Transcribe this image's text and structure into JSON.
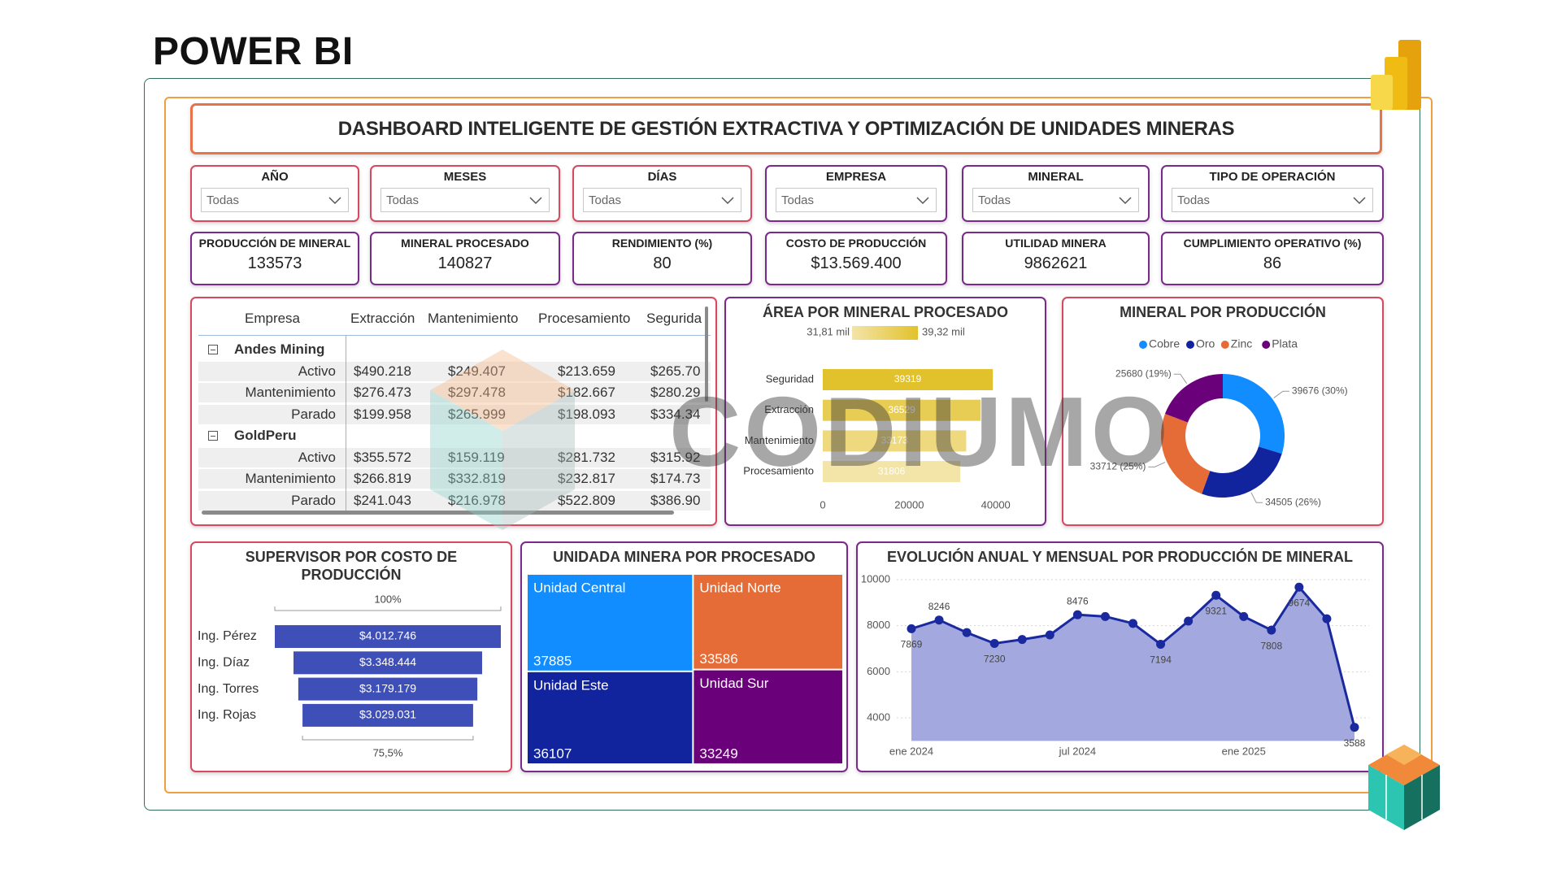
{
  "page_title": "POWER BI",
  "watermark": "CODIUMO",
  "header": {
    "title": "DASHBOARD INTELIGENTE DE GESTIÓN EXTRACTIVA Y OPTIMIZACIÓN DE UNIDADES MINERAS"
  },
  "filters": [
    {
      "label": "AÑO",
      "value": "Todas"
    },
    {
      "label": "MESES",
      "value": "Todas"
    },
    {
      "label": "DÍAS",
      "value": "Todas"
    },
    {
      "label": "EMPRESA",
      "value": "Todas"
    },
    {
      "label": "MINERAL",
      "value": "Todas"
    },
    {
      "label": "TIPO DE OPERACIÓN",
      "value": "Todas"
    }
  ],
  "kpis": [
    {
      "label": "PRODUCCIÓN DE MINERAL",
      "value": 133573
    },
    {
      "label": "MINERAL PROCESADO",
      "value": 140827
    },
    {
      "label": "RENDIMIENTO (%)",
      "value": 80
    },
    {
      "label": "COSTO DE PRODUCCIÓN",
      "value": "$13.569.400"
    },
    {
      "label": "UTILIDAD MINERA",
      "value": 9862621
    },
    {
      "label": "CUMPLIMIENTO OPERATIVO (%)",
      "value": 86
    }
  ],
  "table": {
    "columns": [
      "Empresa",
      "Extracción",
      "Mantenimiento",
      "Procesamiento",
      "Segurida"
    ],
    "groups": [
      {
        "name": "Andes Mining",
        "rows": [
          {
            "label": "Activo",
            "cells": [
              "$490.218",
              "$249.407",
              "$213.659",
              "$265.70"
            ]
          },
          {
            "label": "Mantenimiento",
            "cells": [
              "$276.473",
              "$297.478",
              "$182.667",
              "$280.29"
            ]
          },
          {
            "label": "Parado",
            "cells": [
              "$199.958",
              "$265.999",
              "$198.093",
              "$334.34"
            ]
          }
        ]
      },
      {
        "name": "GoldPeru",
        "rows": [
          {
            "label": "Activo",
            "cells": [
              "$355.572",
              "$159.119",
              "$281.732",
              "$315.92"
            ]
          },
          {
            "label": "Mantenimiento",
            "cells": [
              "$266.819",
              "$332.819",
              "$232.817",
              "$174.73"
            ]
          },
          {
            "label": "Parado",
            "cells": [
              "$241.043",
              "$216.978",
              "$522.809",
              "$386.90"
            ]
          }
        ]
      }
    ]
  },
  "chart_data": [
    {
      "type": "bar",
      "title": "ÁREA POR MINERAL PROCESADO",
      "categories": [
        "Seguridad",
        "Extracción",
        "Mantenimiento",
        "Procesamiento"
      ],
      "values": [
        39319,
        36529,
        33173,
        31806
      ],
      "colors": [
        "#e2c22c",
        "#e8cd55",
        "#eed97f",
        "#f3e4a8"
      ],
      "color_scale": [
        {
          "value": 31810,
          "label": "31,81 mil"
        },
        {
          "value": 39320,
          "label": "39,32 mil"
        }
      ],
      "xlim": [
        0,
        44000
      ],
      "xticks": [
        0,
        20000,
        40000
      ]
    },
    {
      "type": "pie",
      "title": "MINERAL POR PRODUCCIÓN",
      "categories": [
        "Cobre",
        "Oro",
        "Zinc",
        "Plata"
      ],
      "values": [
        39676,
        34505,
        33712,
        25680
      ],
      "value_labels": [
        "39676 (30%)",
        "34505 (26%)",
        "33712 (25%)",
        "25680 (19%)"
      ],
      "colors": [
        "#118dff",
        "#12239e",
        "#e66c37",
        "#6b007b"
      ]
    },
    {
      "type": "funnel",
      "title": "SUPERVISOR POR COSTO DE PRODUCCIÓN",
      "categories": [
        "Ing. Pérez",
        "Ing. Díaz",
        "Ing. Torres",
        "Ing. Rojas"
      ],
      "values": [
        4012746,
        3348444,
        3179179,
        3029031
      ],
      "value_labels": [
        "$4.012.746",
        "$3.348.444",
        "$3.179.179",
        "$3.029.031"
      ],
      "top_label": "100%",
      "bottom_label": "75,5%",
      "color": "#3f4fb8"
    },
    {
      "type": "treemap",
      "title": "UNIDADA MINERA POR PROCESADO",
      "categories": [
        "Unidad Central",
        "Unidad Norte",
        "Unidad Este",
        "Unidad Sur"
      ],
      "values": [
        37885,
        33586,
        36107,
        33249
      ],
      "colors": [
        "#118dff",
        "#e66c37",
        "#12239e",
        "#6b007b"
      ]
    },
    {
      "type": "line",
      "title": "EVOLUCIÓN ANUAL Y MENSUAL POR PRODUCCIÓN DE MINERAL",
      "categories": [
        "ene 2024",
        null,
        null,
        null,
        null,
        null,
        "jul 2024",
        null,
        null,
        null,
        null,
        null,
        "ene 2025",
        null,
        null,
        null,
        null
      ],
      "values": [
        7869,
        8246,
        7700,
        7230,
        7400,
        7600,
        8476,
        8400,
        8100,
        7194,
        8200,
        9321,
        8400,
        7808,
        9674,
        8300,
        3588
      ],
      "value_labels": [
        "7869",
        "8246",
        null,
        "7230",
        null,
        null,
        "8476",
        null,
        null,
        "7194",
        null,
        "9321",
        null,
        "7808",
        "9674",
        null,
        "3588"
      ],
      "color": "#1a2a9e",
      "fill_color": "#a3a9de",
      "ylim": [
        3000,
        10300
      ],
      "yticks": [
        4000,
        6000,
        8000,
        10000
      ],
      "grid": true
    }
  ]
}
